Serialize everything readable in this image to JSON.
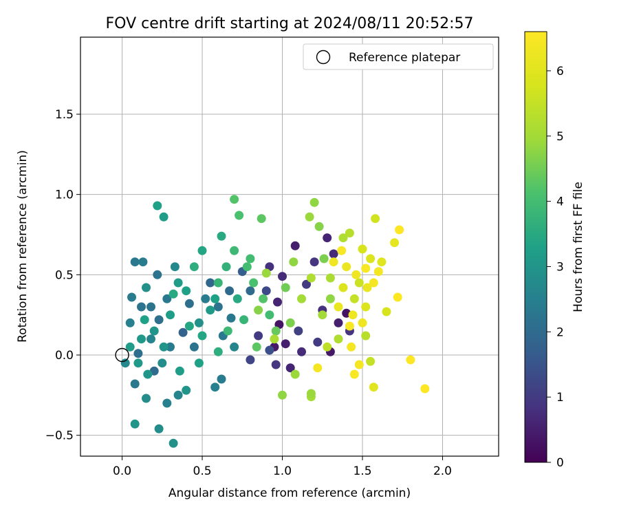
{
  "chart_data": {
    "type": "scatter",
    "title": "FOV centre drift starting at 2024/08/11 20:52:57",
    "xlabel": "Angular distance from reference (arcmin)",
    "ylabel": "Rotation from reference (arcmin)",
    "xlim": [
      -0.26,
      2.35
    ],
    "ylim": [
      -0.63,
      1.98
    ],
    "xticks": [
      "0.0",
      "0.5",
      "1.0",
      "1.5",
      "2.0"
    ],
    "yticks": [
      "−0.5",
      "0.0",
      "0.5",
      "1.0",
      "1.5"
    ],
    "grid": true,
    "legend": {
      "placement": "top-right",
      "entries": [
        "Reference platepar"
      ]
    },
    "reference_point": {
      "x": 0.0,
      "y": 0.0
    },
    "colorbar": {
      "label": "Hours from first FF file",
      "colormap": "viridis",
      "range": [
        0,
        6.6
      ],
      "ticks": [
        "0",
        "1",
        "2",
        "3",
        "4",
        "5",
        "6"
      ]
    },
    "series": [
      {
        "points": [
          [
            0.98,
            0.19,
            0.3
          ],
          [
            1.02,
            0.07,
            0.5
          ],
          [
            0.95,
            0.05,
            0.4
          ],
          [
            1.05,
            -0.08,
            0.6
          ],
          [
            1.12,
            0.02,
            0.7
          ],
          [
            0.92,
            0.55,
            0.8
          ],
          [
            1.08,
            0.68,
            0.5
          ],
          [
            1.2,
            0.58,
            0.9
          ],
          [
            1.28,
            0.73,
            0.6
          ],
          [
            1.15,
            0.44,
            1.0
          ],
          [
            1.3,
            0.02,
            0.4
          ],
          [
            1.25,
            0.28,
            0.8
          ],
          [
            1.35,
            0.2,
            0.5
          ],
          [
            1.42,
            0.15,
            0.9
          ],
          [
            0.8,
            -0.03,
            1.2
          ],
          [
            0.85,
            0.12,
            1.0
          ],
          [
            0.97,
            0.33,
            0.6
          ],
          [
            1.1,
            0.15,
            1.1
          ],
          [
            1.0,
            0.49,
            0.7
          ],
          [
            0.9,
            0.4,
            1.3
          ],
          [
            1.4,
            0.26,
            0.3
          ],
          [
            1.22,
            0.08,
            1.0
          ],
          [
            1.32,
            0.63,
            0.7
          ],
          [
            0.96,
            -0.06,
            0.9
          ],
          [
            0.92,
            0.03,
            1.4
          ],
          [
            0.38,
            0.14,
            1.8
          ],
          [
            0.1,
            0.01,
            2.1
          ],
          [
            0.08,
            -0.18,
            2.3
          ],
          [
            0.2,
            -0.1,
            2.0
          ],
          [
            0.3,
            0.05,
            2.4
          ],
          [
            0.12,
            0.3,
            2.2
          ],
          [
            0.18,
            0.1,
            2.6
          ],
          [
            0.25,
            -0.05,
            2.8
          ],
          [
            0.05,
            0.2,
            2.5
          ],
          [
            0.15,
            0.42,
            2.9
          ],
          [
            0.6,
            0.3,
            2.2
          ],
          [
            0.55,
            0.45,
            1.9
          ],
          [
            0.68,
            0.23,
            2.3
          ],
          [
            0.75,
            0.52,
            1.7
          ],
          [
            0.42,
            0.32,
            2.1
          ],
          [
            0.33,
            0.55,
            2.7
          ],
          [
            0.48,
            0.2,
            2.9
          ],
          [
            0.62,
            -0.15,
            2.4
          ],
          [
            0.7,
            0.05,
            2.6
          ],
          [
            0.8,
            0.4,
            2.0
          ],
          [
            0.02,
            -0.05,
            2.7
          ],
          [
            0.06,
            0.36,
            2.4
          ],
          [
            0.22,
            0.5,
            2.2
          ],
          [
            0.28,
            -0.3,
            2.5
          ],
          [
            0.35,
            -0.25,
            2.6
          ],
          [
            0.08,
            0.58,
            2.3
          ],
          [
            0.13,
            0.58,
            2.4
          ],
          [
            0.18,
            0.3,
            2.2
          ],
          [
            0.23,
            0.22,
            2.1
          ],
          [
            0.28,
            0.35,
            2.3
          ],
          [
            0.45,
            0.05,
            2.2
          ],
          [
            0.52,
            0.35,
            2.4
          ],
          [
            0.58,
            -0.2,
            2.5
          ],
          [
            0.63,
            0.12,
            2.3
          ],
          [
            0.67,
            0.4,
            2.0
          ],
          [
            0.22,
            0.93,
            3.3
          ],
          [
            0.26,
            0.86,
            3.2
          ],
          [
            0.32,
            -0.55,
            2.9
          ],
          [
            0.23,
            -0.46,
            2.8
          ],
          [
            0.08,
            -0.43,
            3.0
          ],
          [
            0.15,
            -0.27,
            2.8
          ],
          [
            0.4,
            -0.22,
            3.0
          ],
          [
            0.5,
            0.65,
            3.4
          ],
          [
            0.62,
            0.74,
            3.5
          ],
          [
            0.1,
            -0.05,
            3.1
          ],
          [
            0.2,
            0.15,
            3.0
          ],
          [
            0.3,
            0.25,
            3.2
          ],
          [
            0.4,
            0.4,
            3.3
          ],
          [
            0.5,
            0.12,
            3.4
          ],
          [
            0.55,
            0.28,
            3.1
          ],
          [
            0.35,
            0.45,
            3.2
          ],
          [
            0.45,
            0.55,
            3.6
          ],
          [
            0.65,
            0.55,
            3.7
          ],
          [
            0.72,
            0.35,
            3.5
          ],
          [
            0.48,
            -0.05,
            3.3
          ],
          [
            0.26,
            0.05,
            3.0
          ],
          [
            0.36,
            -0.1,
            3.2
          ],
          [
            0.42,
            0.18,
            3.4
          ],
          [
            0.12,
            0.1,
            3.1
          ],
          [
            0.16,
            -0.12,
            3.0
          ],
          [
            0.05,
            0.05,
            3.2
          ],
          [
            0.14,
            0.22,
            3.3
          ],
          [
            0.32,
            0.38,
            3.5
          ],
          [
            0.58,
            0.35,
            3.3
          ],
          [
            0.6,
            0.02,
            3.6
          ],
          [
            0.7,
            0.97,
            4.2
          ],
          [
            0.73,
            0.87,
            4.1
          ],
          [
            0.87,
            0.85,
            4.3
          ],
          [
            0.7,
            0.65,
            3.9
          ],
          [
            0.78,
            0.55,
            4.0
          ],
          [
            0.82,
            0.45,
            4.1
          ],
          [
            0.88,
            0.35,
            4.2
          ],
          [
            0.76,
            0.22,
            3.8
          ],
          [
            0.92,
            0.25,
            4.0
          ],
          [
            0.84,
            0.05,
            4.3
          ],
          [
            0.66,
            0.15,
            3.9
          ],
          [
            0.6,
            0.45,
            3.8
          ],
          [
            0.96,
            0.15,
            4.4
          ],
          [
            1.02,
            0.42,
            4.5
          ],
          [
            0.8,
            0.6,
            4.0
          ],
          [
            1.2,
            0.95,
            4.8
          ],
          [
            1.17,
            0.86,
            4.9
          ],
          [
            1.23,
            0.8,
            4.7
          ],
          [
            1.0,
            -0.25,
            4.8
          ],
          [
            1.18,
            -0.26,
            5.0
          ],
          [
            1.18,
            -0.24,
            4.9
          ],
          [
            1.07,
            0.58,
            4.8
          ],
          [
            1.12,
            0.35,
            5.0
          ],
          [
            1.18,
            0.48,
            5.2
          ],
          [
            1.05,
            0.2,
            4.6
          ],
          [
            0.9,
            0.51,
            4.9
          ],
          [
            0.95,
            0.1,
            5.1
          ],
          [
            1.08,
            -0.12,
            4.9
          ],
          [
            1.26,
            0.6,
            4.6
          ],
          [
            0.85,
            0.28,
            4.7
          ],
          [
            1.3,
            0.48,
            5.1
          ],
          [
            1.38,
            0.73,
            5.2
          ],
          [
            1.42,
            0.76,
            5.3
          ],
          [
            1.25,
            0.25,
            5.0
          ],
          [
            1.3,
            0.35,
            4.8
          ],
          [
            1.35,
            0.1,
            5.2
          ],
          [
            1.28,
            0.05,
            5.4
          ],
          [
            1.45,
            0.35,
            5.5
          ],
          [
            1.52,
            0.12,
            5.3
          ],
          [
            1.55,
            -0.04,
            5.5
          ],
          [
            1.58,
            0.85,
            5.7
          ],
          [
            1.5,
            0.66,
            5.8
          ],
          [
            1.55,
            0.6,
            5.9
          ],
          [
            1.48,
            0.45,
            5.6
          ],
          [
            1.52,
            0.3,
            5.9
          ],
          [
            1.57,
            -0.2,
            6.0
          ],
          [
            1.65,
            0.27,
            5.8
          ],
          [
            1.62,
            0.58,
            6.0
          ],
          [
            1.7,
            0.7,
            6.1
          ],
          [
            1.38,
            0.42,
            5.9
          ],
          [
            1.4,
            0.55,
            6.2
          ],
          [
            1.46,
            0.5,
            6.3
          ],
          [
            1.53,
            0.42,
            6.2
          ],
          [
            1.6,
            0.52,
            6.4
          ],
          [
            1.35,
            0.3,
            6.2
          ],
          [
            1.44,
            0.25,
            6.3
          ],
          [
            1.5,
            0.2,
            6.3
          ],
          [
            1.43,
            0.05,
            6.4
          ],
          [
            1.48,
            -0.06,
            6.4
          ],
          [
            1.45,
            -0.12,
            6.5
          ],
          [
            1.32,
            0.58,
            6.3
          ],
          [
            1.37,
            0.65,
            6.5
          ],
          [
            1.73,
            0.78,
            6.6
          ],
          [
            1.72,
            0.36,
            6.6
          ],
          [
            1.8,
            -0.03,
            6.6
          ],
          [
            1.89,
            -0.21,
            6.6
          ],
          [
            1.22,
            -0.08,
            6.4
          ],
          [
            1.52,
            0.54,
            6.5
          ],
          [
            1.57,
            0.45,
            6.4
          ],
          [
            1.42,
            0.18,
            6.5
          ]
        ]
      }
    ]
  }
}
